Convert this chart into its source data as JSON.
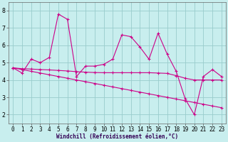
{
  "xlabel": "Windchill (Refroidissement éolien,°C)",
  "bg_color": "#c8eeee",
  "grid_color": "#99cccc",
  "line_color": "#cc0088",
  "x_values": [
    0,
    1,
    2,
    3,
    4,
    5,
    6,
    7,
    8,
    9,
    10,
    11,
    12,
    13,
    14,
    15,
    16,
    17,
    18,
    19,
    20,
    21,
    22,
    23
  ],
  "series1": [
    4.7,
    4.4,
    5.2,
    5.0,
    5.3,
    7.8,
    7.5,
    4.2,
    4.8,
    4.8,
    4.9,
    5.2,
    6.6,
    6.5,
    5.9,
    5.2,
    6.7,
    5.5,
    4.5,
    2.9,
    2.0,
    4.2,
    4.6,
    4.2
  ],
  "series2": [
    4.7,
    4.65,
    4.63,
    4.6,
    4.58,
    4.55,
    4.52,
    4.48,
    4.45,
    4.43,
    4.42,
    4.42,
    4.42,
    4.42,
    4.42,
    4.42,
    4.4,
    4.38,
    4.25,
    4.1,
    4.0,
    4.0,
    4.0,
    4.0
  ],
  "series3": [
    4.7,
    4.6,
    4.5,
    4.4,
    4.3,
    4.2,
    4.1,
    4.0,
    3.9,
    3.8,
    3.7,
    3.6,
    3.5,
    3.4,
    3.3,
    3.2,
    3.1,
    3.0,
    2.9,
    2.8,
    2.7,
    2.6,
    2.5,
    2.4
  ],
  "ylim": [
    1.5,
    8.5
  ],
  "yticks": [
    2,
    3,
    4,
    5,
    6,
    7,
    8
  ],
  "xlim": [
    -0.5,
    23.5
  ],
  "xticks": [
    0,
    1,
    2,
    3,
    4,
    5,
    6,
    7,
    8,
    9,
    10,
    11,
    12,
    13,
    14,
    15,
    16,
    17,
    18,
    19,
    20,
    21,
    22,
    23
  ],
  "tick_fontsize": 5.5,
  "label_fontsize": 5.5,
  "lw": 0.8,
  "ms": 3.0,
  "mew": 0.8
}
